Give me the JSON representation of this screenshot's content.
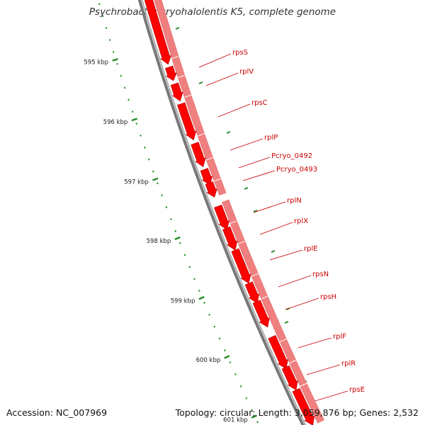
{
  "title": "Psychrobacter cryohalolentis K5, complete genome",
  "footer": {
    "accession": "Accession: NC_007969",
    "stats": "Topology: circular; Length: 3,059,876 bp; Genes: 2,532"
  },
  "colors": {
    "backbone": "#8a8a8a",
    "cds_forward": "#ff0000",
    "cds_track": "#f08080",
    "gene_label": "#cc0000",
    "tick": "#228b22"
  },
  "ticks": {
    "major_labels": [
      "595 kbp",
      "596 kbp",
      "597 kbp",
      "598 kbp",
      "599 kbp",
      "600 kbp",
      "601 kbp"
    ]
  },
  "genes": [
    {
      "name": "rpsS"
    },
    {
      "name": "rplV"
    },
    {
      "name": "rpsC"
    },
    {
      "name": "rplP"
    },
    {
      "name": "Pcryo_0492"
    },
    {
      "name": "Pcryo_0493"
    },
    {
      "name": "rplN"
    },
    {
      "name": "rplX"
    },
    {
      "name": "rplE"
    },
    {
      "name": "rpsN"
    },
    {
      "name": "rpsH"
    },
    {
      "name": "rplF"
    },
    {
      "name": "rplR"
    },
    {
      "name": "rpsE"
    }
  ]
}
